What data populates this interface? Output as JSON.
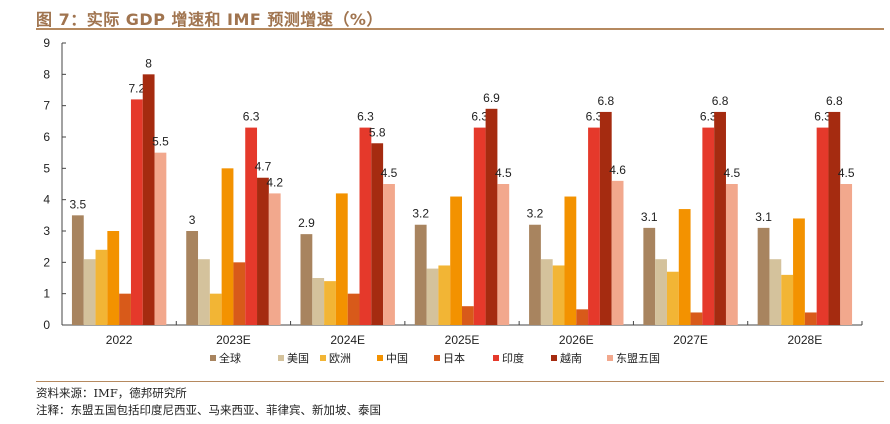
{
  "title": "图 7：实际 GDP 增速和 IMF 预测增速（%）",
  "footer": {
    "source": "资料来源：IMF，德邦研究所",
    "note": "注释：东盟五国包括印度尼西亚、马来西亚、菲律宾、新加坡、泰国"
  },
  "chart_data": {
    "type": "bar",
    "title": "实际 GDP 增速和 IMF 预测增速（%）",
    "xlabel": "",
    "ylabel": "",
    "ylim": [
      0,
      9
    ],
    "yticks": [
      0,
      1,
      2,
      3,
      4,
      5,
      6,
      7,
      8,
      9
    ],
    "grid": false,
    "legend_position": "bottom",
    "categories": [
      "2022",
      "2023E",
      "2024E",
      "2025E",
      "2026E",
      "2027E",
      "2028E"
    ],
    "series": [
      {
        "name": "全球",
        "color": "#a8845f",
        "values": [
          3.5,
          3.0,
          2.9,
          3.2,
          3.2,
          3.1,
          3.1
        ],
        "labeled": true
      },
      {
        "name": "美国",
        "color": "#d4c29c",
        "values": [
          2.1,
          2.1,
          1.5,
          1.8,
          2.1,
          2.1,
          2.1
        ],
        "labeled": false
      },
      {
        "name": "欧洲",
        "color": "#f2b535",
        "values": [
          2.4,
          1.0,
          1.4,
          1.9,
          1.9,
          1.7,
          1.6
        ],
        "labeled": false
      },
      {
        "name": "中国",
        "color": "#f39200",
        "values": [
          3.0,
          5.0,
          4.2,
          4.1,
          4.1,
          3.7,
          3.4
        ],
        "labeled": false
      },
      {
        "name": "日本",
        "color": "#d85a1a",
        "values": [
          1.0,
          2.0,
          1.0,
          0.6,
          0.5,
          0.4,
          0.4
        ],
        "labeled": false
      },
      {
        "name": "印度",
        "color": "#e5392b",
        "values": [
          7.2,
          6.3,
          6.3,
          6.3,
          6.3,
          6.3,
          6.3
        ],
        "labeled": true
      },
      {
        "name": "越南",
        "color": "#a52b10",
        "values": [
          8.0,
          4.7,
          5.8,
          6.9,
          6.8,
          6.8,
          6.8
        ],
        "labeled": true
      },
      {
        "name": "东盟五国",
        "color": "#f2a88d",
        "values": [
          5.5,
          4.2,
          4.5,
          4.5,
          4.6,
          4.5,
          4.5
        ],
        "labeled": true
      }
    ],
    "data_labels": {
      "全球": [
        "3.5",
        "3",
        "2.9",
        "3.2",
        "3.2",
        "3.1",
        "3.1"
      ],
      "印度": [
        "7.2",
        "6.3",
        "6.3",
        "6.3",
        "6.3",
        "6.3",
        "6.3"
      ],
      "越南": [
        "8",
        "4.7",
        "5.8",
        "6.9",
        "6.8",
        "6.8",
        "6.8"
      ],
      "东盟五国": [
        "5.5",
        "4.2",
        "4.5",
        "4.5",
        "4.6",
        "4.5",
        "4.5"
      ]
    }
  }
}
